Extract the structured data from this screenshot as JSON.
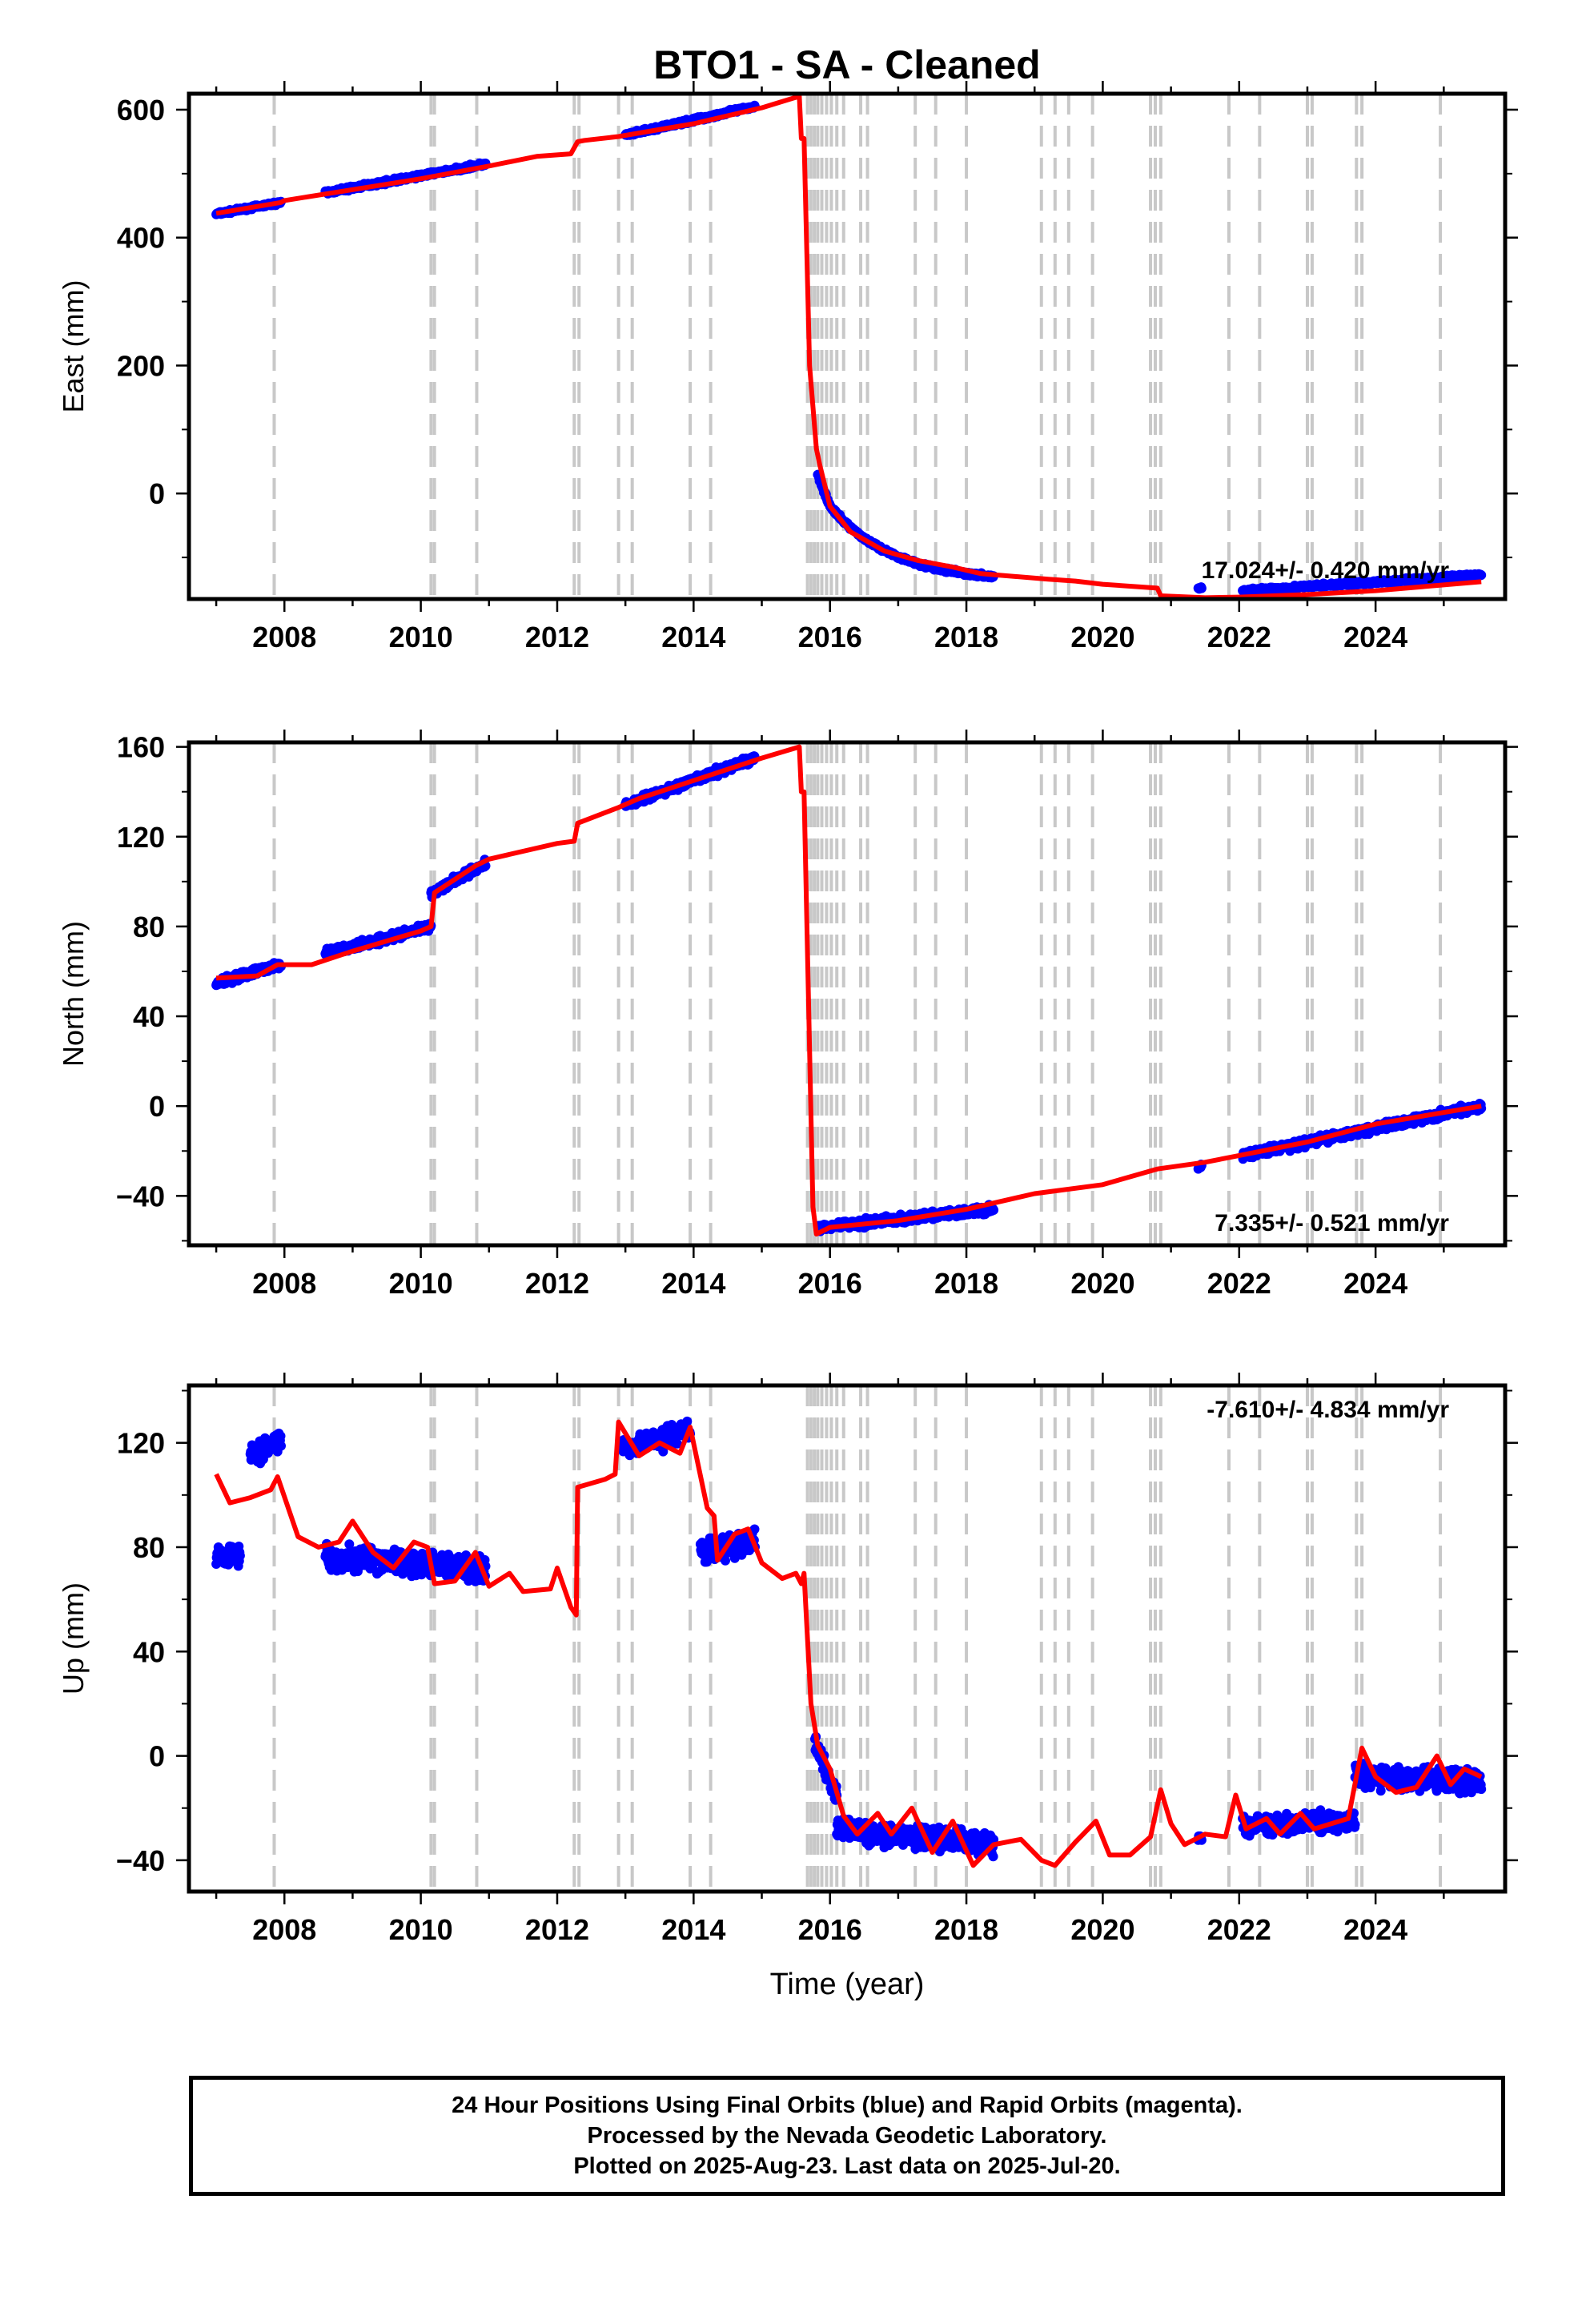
{
  "title": "BTO1  - SA - Cleaned",
  "xlabel": "Time (year)",
  "colors": {
    "final": "#0000ff",
    "model": "#ff0000",
    "steps": "#c8c8c8",
    "frame": "#000000"
  },
  "footer": [
    "24 Hour Positions Using Final Orbits (blue) and Rapid Orbits (magenta).",
    "Processed by the Nevada Geodetic Laboratory.",
    "Plotted on 2025-Aug-23. Last data on 2025-Jul-20."
  ],
  "chart_data": [
    {
      "type": "scatter",
      "name": "east",
      "ylabel": "East (mm)",
      "rate": "17.024+/- 0.420 mm/yr",
      "xlim": [
        2006.6,
        2025.9
      ],
      "ylim": [
        -165,
        625
      ],
      "xticks": [
        2008,
        2010,
        2012,
        2014,
        2016,
        2018,
        2020,
        2022,
        2024
      ],
      "yticks": [
        0,
        200,
        400,
        600
      ],
      "step_epochs": [
        2007.85,
        2010.15,
        2010.2,
        2010.82,
        2012.25,
        2012.32,
        2012.9,
        2013.1,
        2013.95,
        2014.25,
        2015.67,
        2015.72,
        2015.77,
        2015.82,
        2015.88,
        2015.95,
        2016.02,
        2016.1,
        2016.2,
        2016.45,
        2016.55,
        2017.25,
        2017.55,
        2018.0,
        2019.1,
        2019.3,
        2019.5,
        2019.85,
        2020.7,
        2020.77,
        2020.85,
        2021.85,
        2022.3,
        2023.0,
        2023.07,
        2023.72,
        2023.8,
        2024.95
      ],
      "data_segments": [
        {
          "from": 2007.0,
          "to": 2007.95,
          "y": [
            437,
            455
          ],
          "noise": 4
        },
        {
          "from": 2008.6,
          "to": 2010.95,
          "y": [
            470,
            515
          ],
          "noise": 5
        },
        {
          "from": 2013.0,
          "to": 2014.9,
          "y": [
            560,
            605
          ],
          "noise": 5
        },
        {
          "from": 2015.82,
          "to": 2016.0,
          "y": [
            30,
            -20
          ],
          "noise": 6
        },
        {
          "from": 2016.0,
          "to": 2018.4,
          "y": [
            -20,
            -130
          ],
          "curve": "exp",
          "noise": 5
        },
        {
          "from": 2021.4,
          "to": 2021.45,
          "y": [
            -148,
            -148
          ],
          "noise": 3
        },
        {
          "from": 2022.05,
          "to": 2025.55,
          "y": [
            -152,
            -128
          ],
          "noise": 5
        }
      ],
      "model_line": [
        [
          2007.0,
          438
        ],
        [
          2007.95,
          455
        ],
        [
          2008.0,
          458
        ],
        [
          2010.0,
          492
        ],
        [
          2011.0,
          512
        ],
        [
          2011.7,
          527
        ],
        [
          2012.2,
          531
        ],
        [
          2012.3,
          550
        ],
        [
          2012.4,
          552
        ],
        [
          2012.9,
          558
        ],
        [
          2014.0,
          578
        ],
        [
          2015.0,
          603
        ],
        [
          2015.55,
          621
        ],
        [
          2015.58,
          555
        ],
        [
          2015.62,
          555
        ],
        [
          2015.7,
          200
        ],
        [
          2015.8,
          70
        ],
        [
          2015.85,
          45
        ],
        [
          2016.0,
          -20
        ],
        [
          2016.3,
          -60
        ],
        [
          2016.8,
          -90
        ],
        [
          2017.3,
          -105
        ],
        [
          2017.8,
          -115
        ],
        [
          2018.2,
          -125
        ],
        [
          2018.5,
          -128
        ],
        [
          2019.2,
          -134
        ],
        [
          2019.6,
          -137
        ],
        [
          2020.0,
          -142
        ],
        [
          2020.8,
          -148
        ],
        [
          2020.85,
          -160
        ],
        [
          2021.5,
          -163
        ],
        [
          2022.0,
          -162
        ],
        [
          2023.0,
          -158
        ],
        [
          2024.0,
          -152
        ],
        [
          2025.55,
          -138
        ]
      ]
    },
    {
      "type": "scatter",
      "name": "north",
      "ylabel": "North (mm)",
      "rate": "7.335+/- 0.521 mm/yr",
      "xlim": [
        2006.6,
        2025.9
      ],
      "ylim": [
        -62,
        162
      ],
      "xticks": [
        2008,
        2010,
        2012,
        2014,
        2016,
        2018,
        2020,
        2022,
        2024
      ],
      "yticks": [
        -40,
        0,
        40,
        80,
        120,
        160
      ],
      "step_epochs": [
        2007.85,
        2010.15,
        2010.2,
        2010.82,
        2012.25,
        2012.32,
        2012.9,
        2013.1,
        2013.95,
        2014.25,
        2015.67,
        2015.72,
        2015.77,
        2015.82,
        2015.88,
        2015.95,
        2016.02,
        2016.1,
        2016.2,
        2016.45,
        2016.55,
        2017.25,
        2017.55,
        2018.0,
        2019.1,
        2019.3,
        2019.5,
        2019.85,
        2020.7,
        2020.77,
        2020.85,
        2021.85,
        2022.3,
        2023.0,
        2023.07,
        2023.72,
        2023.8,
        2024.95
      ],
      "data_segments": [
        {
          "from": 2007.0,
          "to": 2007.95,
          "y": [
            55,
            63
          ],
          "noise": 3
        },
        {
          "from": 2008.6,
          "to": 2010.15,
          "y": [
            68,
            80
          ],
          "noise": 3
        },
        {
          "from": 2010.15,
          "to": 2010.95,
          "y": [
            95,
            108
          ],
          "noise": 3
        },
        {
          "from": 2013.0,
          "to": 2014.9,
          "y": [
            134,
            155
          ],
          "noise": 3
        },
        {
          "from": 2015.82,
          "to": 2018.4,
          "y": [
            -54,
            -46
          ],
          "noise": 3
        },
        {
          "from": 2021.4,
          "to": 2021.45,
          "y": [
            -27,
            -27
          ],
          "noise": 2
        },
        {
          "from": 2022.05,
          "to": 2025.55,
          "y": [
            -22,
            0
          ],
          "noise": 3
        }
      ],
      "model_line": [
        [
          2007.0,
          57
        ],
        [
          2007.6,
          58
        ],
        [
          2007.9,
          63
        ],
        [
          2008.4,
          63
        ],
        [
          2009.0,
          69
        ],
        [
          2010.0,
          78
        ],
        [
          2010.15,
          80
        ],
        [
          2010.2,
          95
        ],
        [
          2010.8,
          107
        ],
        [
          2011.0,
          110
        ],
        [
          2012.0,
          117
        ],
        [
          2012.25,
          118
        ],
        [
          2012.3,
          126
        ],
        [
          2012.9,
          133
        ],
        [
          2013.2,
          137
        ],
        [
          2014.0,
          145
        ],
        [
          2015.0,
          155
        ],
        [
          2015.55,
          160
        ],
        [
          2015.58,
          140
        ],
        [
          2015.62,
          140
        ],
        [
          2015.75,
          -45
        ],
        [
          2015.8,
          -57
        ],
        [
          2016.0,
          -54
        ],
        [
          2017.0,
          -51
        ],
        [
          2018.0,
          -46
        ],
        [
          2019.0,
          -39
        ],
        [
          2020.0,
          -35
        ],
        [
          2020.8,
          -28
        ],
        [
          2021.5,
          -25
        ],
        [
          2022.0,
          -22
        ],
        [
          2023.0,
          -16
        ],
        [
          2024.0,
          -8
        ],
        [
          2025.55,
          0
        ]
      ]
    },
    {
      "type": "scatter",
      "name": "up",
      "ylabel": "Up (mm)",
      "rate": "-7.610+/- 4.834 mm/yr",
      "xlim": [
        2006.6,
        2025.9
      ],
      "ylim": [
        -52,
        142
      ],
      "xticks": [
        2008,
        2010,
        2012,
        2014,
        2016,
        2018,
        2020,
        2022,
        2024
      ],
      "yticks": [
        -40,
        0,
        40,
        80,
        120
      ],
      "step_epochs": [
        2007.85,
        2010.15,
        2010.2,
        2010.82,
        2012.25,
        2012.32,
        2012.9,
        2013.1,
        2013.95,
        2014.25,
        2015.67,
        2015.72,
        2015.77,
        2015.82,
        2015.88,
        2015.95,
        2016.02,
        2016.1,
        2016.2,
        2016.45,
        2016.55,
        2017.25,
        2017.55,
        2018.0,
        2019.1,
        2019.3,
        2019.5,
        2019.85,
        2020.7,
        2020.77,
        2020.85,
        2021.85,
        2022.3,
        2023.0,
        2023.07,
        2023.72,
        2023.8,
        2024.95
      ],
      "data_segments": [
        {
          "from": 2007.0,
          "to": 2007.35,
          "y": [
            77,
            77
          ],
          "noise": 7
        },
        {
          "from": 2007.5,
          "to": 2007.95,
          "y": [
            115,
            122
          ],
          "noise": 7
        },
        {
          "from": 2008.6,
          "to": 2010.95,
          "y": [
            76,
            72
          ],
          "noise": 8
        },
        {
          "from": 2012.95,
          "to": 2013.95,
          "y": [
            118,
            125
          ],
          "noise": 7
        },
        {
          "from": 2014.1,
          "to": 2014.9,
          "y": [
            78,
            82
          ],
          "noise": 7
        },
        {
          "from": 2015.78,
          "to": 2016.1,
          "y": [
            5,
            -15
          ],
          "noise": 6
        },
        {
          "from": 2016.1,
          "to": 2018.4,
          "y": [
            -28,
            -34
          ],
          "noise": 7
        },
        {
          "from": 2021.4,
          "to": 2021.45,
          "y": [
            -32,
            -32
          ],
          "noise": 3
        },
        {
          "from": 2022.05,
          "to": 2023.7,
          "y": [
            -27,
            -25
          ],
          "noise": 6
        },
        {
          "from": 2023.7,
          "to": 2025.55,
          "y": [
            -8,
            -10
          ],
          "noise": 7
        }
      ],
      "model_line": [
        [
          2007.0,
          108
        ],
        [
          2007.2,
          97
        ],
        [
          2007.5,
          99
        ],
        [
          2007.8,
          102
        ],
        [
          2007.9,
          107
        ],
        [
          2008.2,
          84
        ],
        [
          2008.5,
          80
        ],
        [
          2008.8,
          82
        ],
        [
          2009.0,
          90
        ],
        [
          2009.3,
          78
        ],
        [
          2009.6,
          72
        ],
        [
          2009.9,
          82
        ],
        [
          2010.1,
          80
        ],
        [
          2010.2,
          66
        ],
        [
          2010.5,
          67
        ],
        [
          2010.8,
          78
        ],
        [
          2011.0,
          65
        ],
        [
          2011.3,
          70
        ],
        [
          2011.5,
          63
        ],
        [
          2011.9,
          64
        ],
        [
          2012.0,
          72
        ],
        [
          2012.2,
          57
        ],
        [
          2012.28,
          54
        ],
        [
          2012.3,
          103
        ],
        [
          2012.7,
          106
        ],
        [
          2012.85,
          108
        ],
        [
          2012.9,
          128
        ],
        [
          2013.2,
          115
        ],
        [
          2013.5,
          120
        ],
        [
          2013.8,
          116
        ],
        [
          2013.95,
          126
        ],
        [
          2014.2,
          95
        ],
        [
          2014.3,
          92
        ],
        [
          2014.35,
          75
        ],
        [
          2014.6,
          85
        ],
        [
          2014.8,
          87
        ],
        [
          2015.0,
          74
        ],
        [
          2015.3,
          68
        ],
        [
          2015.5,
          70
        ],
        [
          2015.58,
          66
        ],
        [
          2015.62,
          70
        ],
        [
          2015.72,
          20
        ],
        [
          2015.82,
          4
        ],
        [
          2016.0,
          -5
        ],
        [
          2016.2,
          -23
        ],
        [
          2016.4,
          -30
        ],
        [
          2016.7,
          -22
        ],
        [
          2016.9,
          -30
        ],
        [
          2017.2,
          -20
        ],
        [
          2017.5,
          -37
        ],
        [
          2017.8,
          -25
        ],
        [
          2018.1,
          -42
        ],
        [
          2018.4,
          -34
        ],
        [
          2018.8,
          -32
        ],
        [
          2019.1,
          -40
        ],
        [
          2019.3,
          -42
        ],
        [
          2019.6,
          -33
        ],
        [
          2019.9,
          -25
        ],
        [
          2020.1,
          -38
        ],
        [
          2020.4,
          -38
        ],
        [
          2020.7,
          -31
        ],
        [
          2020.85,
          -13
        ],
        [
          2021.0,
          -26
        ],
        [
          2021.2,
          -34
        ],
        [
          2021.5,
          -30
        ],
        [
          2021.8,
          -31
        ],
        [
          2021.95,
          -15
        ],
        [
          2022.1,
          -28
        ],
        [
          2022.4,
          -24
        ],
        [
          2022.6,
          -30
        ],
        [
          2022.9,
          -22
        ],
        [
          2023.1,
          -28
        ],
        [
          2023.6,
          -24
        ],
        [
          2023.8,
          3
        ],
        [
          2024.0,
          -8
        ],
        [
          2024.3,
          -14
        ],
        [
          2024.6,
          -12
        ],
        [
          2024.9,
          0
        ],
        [
          2025.1,
          -11
        ],
        [
          2025.3,
          -5
        ],
        [
          2025.55,
          -8
        ]
      ]
    }
  ]
}
